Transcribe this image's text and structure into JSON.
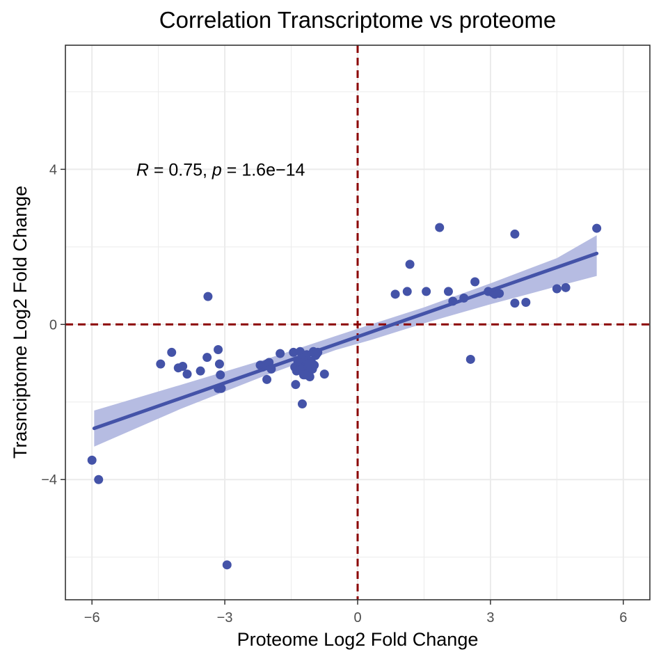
{
  "chart_data": {
    "type": "scatter",
    "title": "Correlation Transcriptome vs proteome",
    "xlabel": "Proteome Log2 Fold Change",
    "ylabel": "Trasnciptome Log2 Fold Change",
    "xlim": [
      -6.6,
      6.6
    ],
    "ylim": [
      -7.1,
      7.2
    ],
    "x_ticks": [
      {
        "value": -6,
        "label": "−6"
      },
      {
        "value": -3,
        "label": "−3"
      },
      {
        "value": 0,
        "label": "0"
      },
      {
        "value": 3,
        "label": "3"
      },
      {
        "value": 6,
        "label": "6"
      }
    ],
    "y_ticks": [
      {
        "value": -4,
        "label": "−4"
      },
      {
        "value": 0,
        "label": "0"
      },
      {
        "value": 4,
        "label": "4"
      }
    ],
    "grid": true,
    "reference_lines": {
      "x": 0,
      "y": 0,
      "color": "#8B0000",
      "style": "dashed"
    },
    "annotation": {
      "r_symbol": "R",
      "r_text": " = 0.75, ",
      "p_symbol": "p",
      "p_text": " = 1.6e−14",
      "x": -5.0,
      "y": 4.0
    },
    "regression": {
      "x": [
        -5.95,
        5.4
      ],
      "y": [
        -2.68,
        1.83
      ],
      "ci_x": [
        -5.95,
        -4.0,
        -2.0,
        -0.5,
        0.3,
        1.5,
        3.0,
        4.5,
        5.4
      ],
      "ci_lower": [
        -3.15,
        -2.18,
        -1.28,
        -0.66,
        -0.4,
        0.03,
        0.52,
        0.98,
        1.25
      ],
      "ci_upper": [
        -2.22,
        -1.56,
        -0.87,
        -0.3,
        0.0,
        0.44,
        1.06,
        1.71,
        2.3
      ]
    },
    "colors": {
      "points": "#4453A8",
      "line": "#4453A8",
      "ci_fill": "#B2B8E0",
      "ref_line": "#8B0000",
      "grid": "#EBEBEB"
    },
    "series": [
      {
        "x": [
          -6.0,
          -5.85,
          -4.45,
          -4.2,
          -4.05,
          -3.95,
          -3.85,
          -3.55,
          -3.4,
          -3.38,
          -3.15,
          -3.12,
          -3.1,
          -3.08,
          -3.15,
          -2.95,
          -2.2,
          -2.15,
          -2.1,
          -2.05,
          -2.0,
          -1.95,
          -2.05,
          -1.75,
          -1.45,
          -1.42,
          -1.4,
          -1.38,
          -1.3,
          -1.28,
          -1.25,
          -1.2,
          -1.18,
          -1.15,
          -1.12,
          -1.1,
          -1.08,
          -1.05,
          -1.02,
          -1.0,
          -0.98,
          -0.95,
          -0.92,
          -1.22,
          -1.1,
          -1.35,
          -1.0,
          -0.9,
          -0.75,
          -1.25,
          0.85,
          1.12,
          1.18,
          1.55,
          1.85,
          2.05,
          2.15,
          2.4,
          2.55,
          2.65,
          2.95,
          3.05,
          3.1,
          3.2,
          3.55,
          3.55,
          3.8,
          4.5,
          4.7,
          5.4
        ],
        "y": [
          -3.5,
          -4.0,
          -1.02,
          -0.72,
          -1.12,
          -1.08,
          -1.28,
          -1.2,
          -0.85,
          0.72,
          -0.65,
          -1.02,
          -1.3,
          -1.65,
          -1.65,
          -6.2,
          -1.05,
          -1.1,
          -1.05,
          -1.02,
          -0.98,
          -1.15,
          -1.42,
          -0.75,
          -0.72,
          -1.1,
          -1.55,
          -1.2,
          -0.7,
          -1.0,
          -1.15,
          -0.9,
          -1.3,
          -0.78,
          -1.1,
          -1.25,
          -1.35,
          -0.95,
          -1.15,
          -0.72,
          -1.05,
          -0.8,
          -0.75,
          -1.3,
          -1.02,
          -0.95,
          -0.7,
          -0.72,
          -1.28,
          -2.05,
          0.78,
          0.85,
          1.55,
          0.85,
          2.5,
          0.85,
          0.6,
          0.68,
          -0.9,
          1.1,
          0.85,
          0.82,
          0.78,
          0.8,
          0.55,
          2.33,
          0.57,
          0.92,
          0.95,
          2.48
        ]
      }
    ]
  }
}
